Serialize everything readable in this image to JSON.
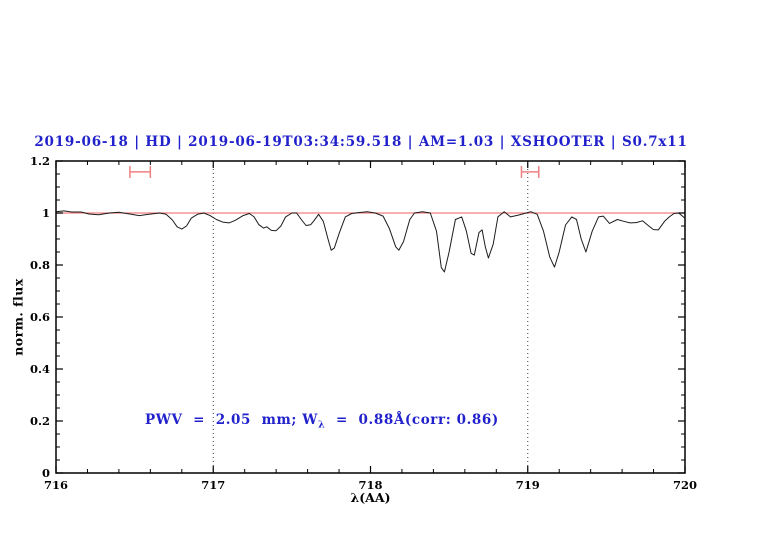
{
  "title": {
    "text": "2019-06-18 | HD | 2019-06-19T03:34:59.518 | AM=1.03 | XSHOOTER | S0.7x11",
    "color": "#2222cc"
  },
  "annotation": {
    "pre": "PWV  =  2.05  mm; W",
    "sub": "λ",
    "post": "  =  0.88Å(corr: 0.86)",
    "color": "#2222cc"
  },
  "axes": {
    "xlabel": "λ(AA)",
    "ylabel": "norm. flux",
    "x_tick_labels": [
      "716",
      "717",
      "718",
      "719",
      "720"
    ],
    "y_tick_labels": [
      "0",
      "0.2",
      "0.4",
      "0.6",
      "0.8",
      "1",
      "1.2"
    ]
  },
  "colors": {
    "frame": "#000000",
    "spectrum": "#1c1c1c",
    "continuum": "#f08080",
    "marker": "#f08080",
    "dotted_line": "#3a3a3a",
    "background": "#ffffff"
  },
  "chart_data": {
    "type": "line",
    "title": "2019-06-18 | HD | 2019-06-19T03:34:59.518 | AM=1.03 | XSHOOTER | S0.7x11",
    "xlabel": "λ(AA)",
    "ylabel": "norm. flux",
    "xlim": [
      716,
      720
    ],
    "ylim": [
      0,
      1.2
    ],
    "x_major_ticks": [
      716,
      717,
      718,
      719,
      720
    ],
    "x_minor_step": 0.2,
    "y_major_ticks": [
      0,
      0.2,
      0.4,
      0.6,
      0.8,
      1.0,
      1.2
    ],
    "y_minor_step": 0.05,
    "grid": "off",
    "dotted_vlines": [
      717,
      719
    ],
    "continuum_line": {
      "y": 1.0
    },
    "range_markers": [
      {
        "x_start": 716.47,
        "x_end": 716.6,
        "y": 1.158
      },
      {
        "x_start": 718.96,
        "x_end": 719.07,
        "y": 1.158
      }
    ],
    "series": [
      {
        "name": "telluric-spectrum",
        "points": [
          [
            716.0,
            1.005
          ],
          [
            716.05,
            1.008
          ],
          [
            716.1,
            1.004
          ],
          [
            716.16,
            1.004
          ],
          [
            716.21,
            0.996
          ],
          [
            716.27,
            0.993
          ],
          [
            716.34,
            1.0
          ],
          [
            716.4,
            1.003
          ],
          [
            716.46,
            0.997
          ],
          [
            716.53,
            0.99
          ],
          [
            716.59,
            0.995
          ],
          [
            716.66,
            1.0
          ],
          [
            716.7,
            0.995
          ],
          [
            716.74,
            0.973
          ],
          [
            716.77,
            0.947
          ],
          [
            716.8,
            0.938
          ],
          [
            716.83,
            0.95
          ],
          [
            716.86,
            0.98
          ],
          [
            716.9,
            0.995
          ],
          [
            716.94,
            1.0
          ],
          [
            716.98,
            0.99
          ],
          [
            717.02,
            0.975
          ],
          [
            717.06,
            0.965
          ],
          [
            717.1,
            0.962
          ],
          [
            717.14,
            0.972
          ],
          [
            717.19,
            0.99
          ],
          [
            717.23,
            0.998
          ],
          [
            717.26,
            0.985
          ],
          [
            717.29,
            0.955
          ],
          [
            717.32,
            0.942
          ],
          [
            717.34,
            0.947
          ],
          [
            717.37,
            0.933
          ],
          [
            717.4,
            0.932
          ],
          [
            717.43,
            0.95
          ],
          [
            717.46,
            0.985
          ],
          [
            717.5,
            1.0
          ],
          [
            717.53,
            1.0
          ],
          [
            717.56,
            0.975
          ],
          [
            717.59,
            0.952
          ],
          [
            717.62,
            0.955
          ],
          [
            717.64,
            0.97
          ],
          [
            717.67,
            0.995
          ],
          [
            717.7,
            0.968
          ],
          [
            717.73,
            0.9
          ],
          [
            717.75,
            0.857
          ],
          [
            717.77,
            0.865
          ],
          [
            717.8,
            0.92
          ],
          [
            717.84,
            0.985
          ],
          [
            717.88,
            0.998
          ],
          [
            717.93,
            1.002
          ],
          [
            717.98,
            1.005
          ],
          [
            718.03,
            1.0
          ],
          [
            718.08,
            0.988
          ],
          [
            718.12,
            0.94
          ],
          [
            718.16,
            0.87
          ],
          [
            718.18,
            0.857
          ],
          [
            718.21,
            0.89
          ],
          [
            718.25,
            0.975
          ],
          [
            718.28,
            1.0
          ],
          [
            718.33,
            1.005
          ],
          [
            718.38,
            1.0
          ],
          [
            718.42,
            0.93
          ],
          [
            718.45,
            0.79
          ],
          [
            718.47,
            0.773
          ],
          [
            718.5,
            0.85
          ],
          [
            718.54,
            0.975
          ],
          [
            718.58,
            0.985
          ],
          [
            718.61,
            0.93
          ],
          [
            718.64,
            0.845
          ],
          [
            718.66,
            0.838
          ],
          [
            718.69,
            0.925
          ],
          [
            718.71,
            0.935
          ],
          [
            718.73,
            0.87
          ],
          [
            718.75,
            0.827
          ],
          [
            718.78,
            0.88
          ],
          [
            718.81,
            0.985
          ],
          [
            718.85,
            1.005
          ],
          [
            718.89,
            0.985
          ],
          [
            718.94,
            0.992
          ],
          [
            718.99,
            1.0
          ],
          [
            719.02,
            1.005
          ],
          [
            719.06,
            0.995
          ],
          [
            719.1,
            0.93
          ],
          [
            719.14,
            0.83
          ],
          [
            719.17,
            0.792
          ],
          [
            719.2,
            0.85
          ],
          [
            719.24,
            0.954
          ],
          [
            719.28,
            0.985
          ],
          [
            719.31,
            0.975
          ],
          [
            719.34,
            0.9
          ],
          [
            719.37,
            0.85
          ],
          [
            719.41,
            0.93
          ],
          [
            719.45,
            0.985
          ],
          [
            719.48,
            0.988
          ],
          [
            719.52,
            0.96
          ],
          [
            719.57,
            0.975
          ],
          [
            719.61,
            0.968
          ],
          [
            719.65,
            0.962
          ],
          [
            719.69,
            0.963
          ],
          [
            719.73,
            0.97
          ],
          [
            719.77,
            0.95
          ],
          [
            719.8,
            0.936
          ],
          [
            719.83,
            0.935
          ],
          [
            719.87,
            0.968
          ],
          [
            719.9,
            0.985
          ],
          [
            719.93,
            0.998
          ],
          [
            719.96,
            1.0
          ],
          [
            720.0,
            0.98
          ]
        ]
      }
    ]
  }
}
